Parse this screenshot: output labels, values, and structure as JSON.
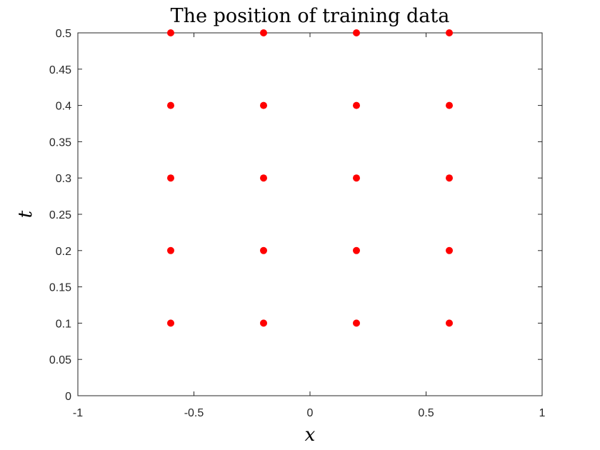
{
  "chart_data": {
    "type": "scatter",
    "title": "The position of training data",
    "xlabel": "x",
    "ylabel": "t",
    "xlim": [
      -1,
      1
    ],
    "ylim": [
      0,
      0.5
    ],
    "x_ticks": [
      "-1",
      "-0.5",
      "0",
      "0.5",
      "1"
    ],
    "y_ticks": [
      "0",
      "0.05",
      "0.1",
      "0.15",
      "0.2",
      "0.25",
      "0.3",
      "0.35",
      "0.4",
      "0.45",
      "0.5"
    ],
    "grid": false,
    "marker_color": "#ff0000",
    "axis_color": "#262626",
    "points": [
      {
        "x": -0.6,
        "y": 0.1
      },
      {
        "x": -0.2,
        "y": 0.1
      },
      {
        "x": 0.2,
        "y": 0.1
      },
      {
        "x": 0.6,
        "y": 0.1
      },
      {
        "x": -0.6,
        "y": 0.2
      },
      {
        "x": -0.2,
        "y": 0.2
      },
      {
        "x": 0.2,
        "y": 0.2
      },
      {
        "x": 0.6,
        "y": 0.2
      },
      {
        "x": -0.6,
        "y": 0.3
      },
      {
        "x": -0.2,
        "y": 0.3
      },
      {
        "x": 0.2,
        "y": 0.3
      },
      {
        "x": 0.6,
        "y": 0.3
      },
      {
        "x": -0.6,
        "y": 0.4
      },
      {
        "x": -0.2,
        "y": 0.4
      },
      {
        "x": 0.2,
        "y": 0.4
      },
      {
        "x": 0.6,
        "y": 0.4
      },
      {
        "x": -0.6,
        "y": 0.5
      },
      {
        "x": -0.2,
        "y": 0.5
      },
      {
        "x": 0.2,
        "y": 0.5
      },
      {
        "x": 0.6,
        "y": 0.5
      }
    ]
  }
}
